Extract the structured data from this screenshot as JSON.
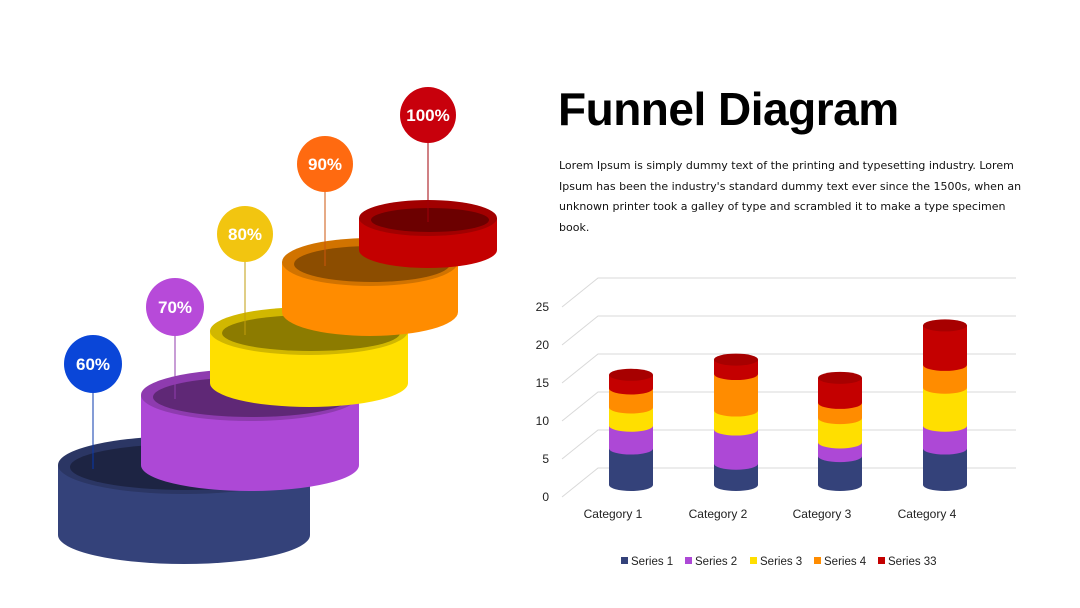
{
  "slide": {
    "title": "Funnel Diagram",
    "description": "Lorem Ipsum is simply dummy text of the printing and typesetting industry. Lorem Ipsum has been the industry's standard dummy text ever since the 1500s, when an unknown printer took a galley of type and scrambled it to make a type specimen book."
  },
  "funnel": {
    "steps": [
      {
        "label": "60%",
        "color": "#34427a",
        "badge_color": "#0a46d8"
      },
      {
        "label": "70%",
        "color": "#ad48d6",
        "badge_color": "#b74ad9"
      },
      {
        "label": "80%",
        "color": "#ffdf00",
        "badge_color": "#f2c510"
      },
      {
        "label": "90%",
        "color": "#ff8c00",
        "badge_color": "#ff6a10"
      },
      {
        "label": "100%",
        "color": "#c40000",
        "badge_color": "#c8000c"
      }
    ]
  },
  "chart_data": {
    "type": "bar",
    "stacked": true,
    "style": "3d-cylinder",
    "categories": [
      "Category 1",
      "Category 2",
      "Category 3",
      "Category 4"
    ],
    "series": [
      {
        "name": "Series 1",
        "color": "#34427a",
        "values": [
          4.8,
          2.8,
          3.8,
          4.8
        ]
      },
      {
        "name": "Series 2",
        "color": "#ad48d6",
        "values": [
          3.0,
          4.5,
          1.8,
          3.0
        ]
      },
      {
        "name": "Series 3",
        "color": "#ffdf00",
        "values": [
          2.4,
          2.5,
          3.2,
          5.0
        ]
      },
      {
        "name": "Series 4",
        "color": "#ff8c00",
        "values": [
          2.5,
          4.8,
          2.0,
          3.0
        ]
      },
      {
        "name": "Series 33",
        "color": "#c40000",
        "values": [
          1.8,
          1.9,
          3.3,
          5.2
        ]
      }
    ],
    "yticks": [
      0,
      5,
      10,
      15,
      20,
      25
    ],
    "ylim": [
      0,
      25
    ],
    "grid": true,
    "legend_position": "bottom"
  }
}
